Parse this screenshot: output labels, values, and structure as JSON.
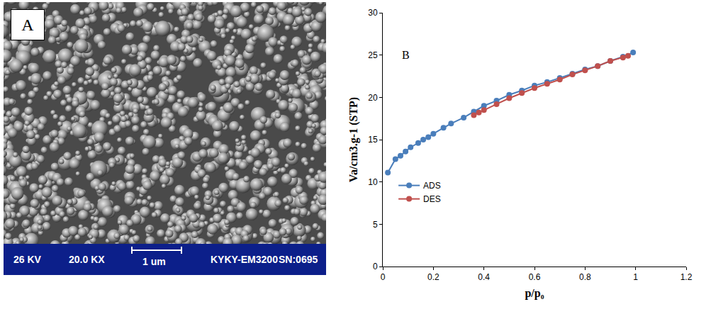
{
  "image_panel": {
    "label": "A",
    "info_bar": [
      "26 KV",
      "20.0 KX",
      "1 um",
      "KYKY-EM3200",
      "SN:0695"
    ]
  },
  "chart_data": {
    "type": "line",
    "x_label": "p/p₀",
    "y_label": "Va/cm3.g-1 (STP)",
    "annotations": [
      {
        "text": "B",
        "x": 0.07,
        "y": 25
      }
    ],
    "series": [
      {
        "name": "ADS",
        "color": "#4a7ebb",
        "marker": "circle",
        "line_style": "solid",
        "x": [
          0.02,
          0.05,
          0.07,
          0.09,
          0.11,
          0.14,
          0.16,
          0.18,
          0.2,
          0.24,
          0.27,
          0.32,
          0.36,
          0.4,
          0.45,
          0.5,
          0.55,
          0.6,
          0.65,
          0.7,
          0.75,
          0.8,
          0.85,
          0.9,
          0.95,
          0.99
        ],
        "values": [
          11.1,
          12.7,
          13.1,
          13.6,
          14.1,
          14.6,
          15.0,
          15.3,
          15.7,
          16.4,
          16.9,
          17.6,
          18.3,
          19.0,
          19.6,
          20.3,
          20.8,
          21.4,
          21.8,
          22.3,
          22.8,
          23.3,
          23.7,
          24.3,
          24.8,
          25.3
        ]
      },
      {
        "name": "DES",
        "color": "#c0504d",
        "marker": "circle",
        "line_style": "solid",
        "x": [
          0.36,
          0.38,
          0.4,
          0.45,
          0.5,
          0.55,
          0.6,
          0.65,
          0.7,
          0.75,
          0.8,
          0.85,
          0.9,
          0.95,
          0.97
        ],
        "values": [
          17.9,
          18.2,
          18.5,
          19.2,
          19.9,
          20.5,
          21.1,
          21.6,
          22.1,
          22.7,
          23.2,
          23.7,
          24.3,
          24.7,
          24.9
        ]
      }
    ],
    "xlim": [
      0,
      1.2
    ],
    "xticks": [
      0,
      0.2,
      0.4,
      0.6,
      0.8,
      1,
      1.2
    ],
    "ylim": [
      0,
      30
    ],
    "yticks": [
      0,
      5,
      10,
      15,
      20,
      25,
      30
    ],
    "grid": false,
    "legend": "lower left"
  }
}
